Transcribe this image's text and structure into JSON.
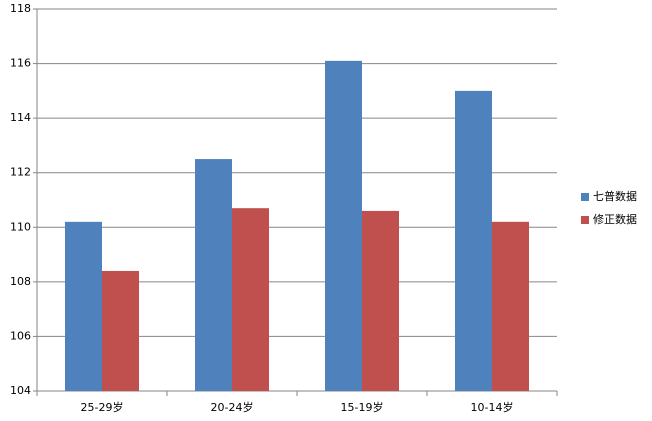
{
  "chart_data": {
    "type": "bar",
    "categories": [
      "25-29岁",
      "20-24岁",
      "15-19岁",
      "10-14岁"
    ],
    "series": [
      {
        "name": "七普数据",
        "color": "#4f81bd",
        "values": [
          110.2,
          112.5,
          116.1,
          115.0
        ]
      },
      {
        "name": "修正数据",
        "color": "#c0504d",
        "values": [
          108.4,
          110.7,
          110.6,
          110.2
        ]
      }
    ],
    "ylim": [
      104,
      118
    ],
    "yticks": [
      104,
      106,
      108,
      110,
      112,
      114,
      116,
      118
    ],
    "grid": true,
    "legend": "right"
  }
}
